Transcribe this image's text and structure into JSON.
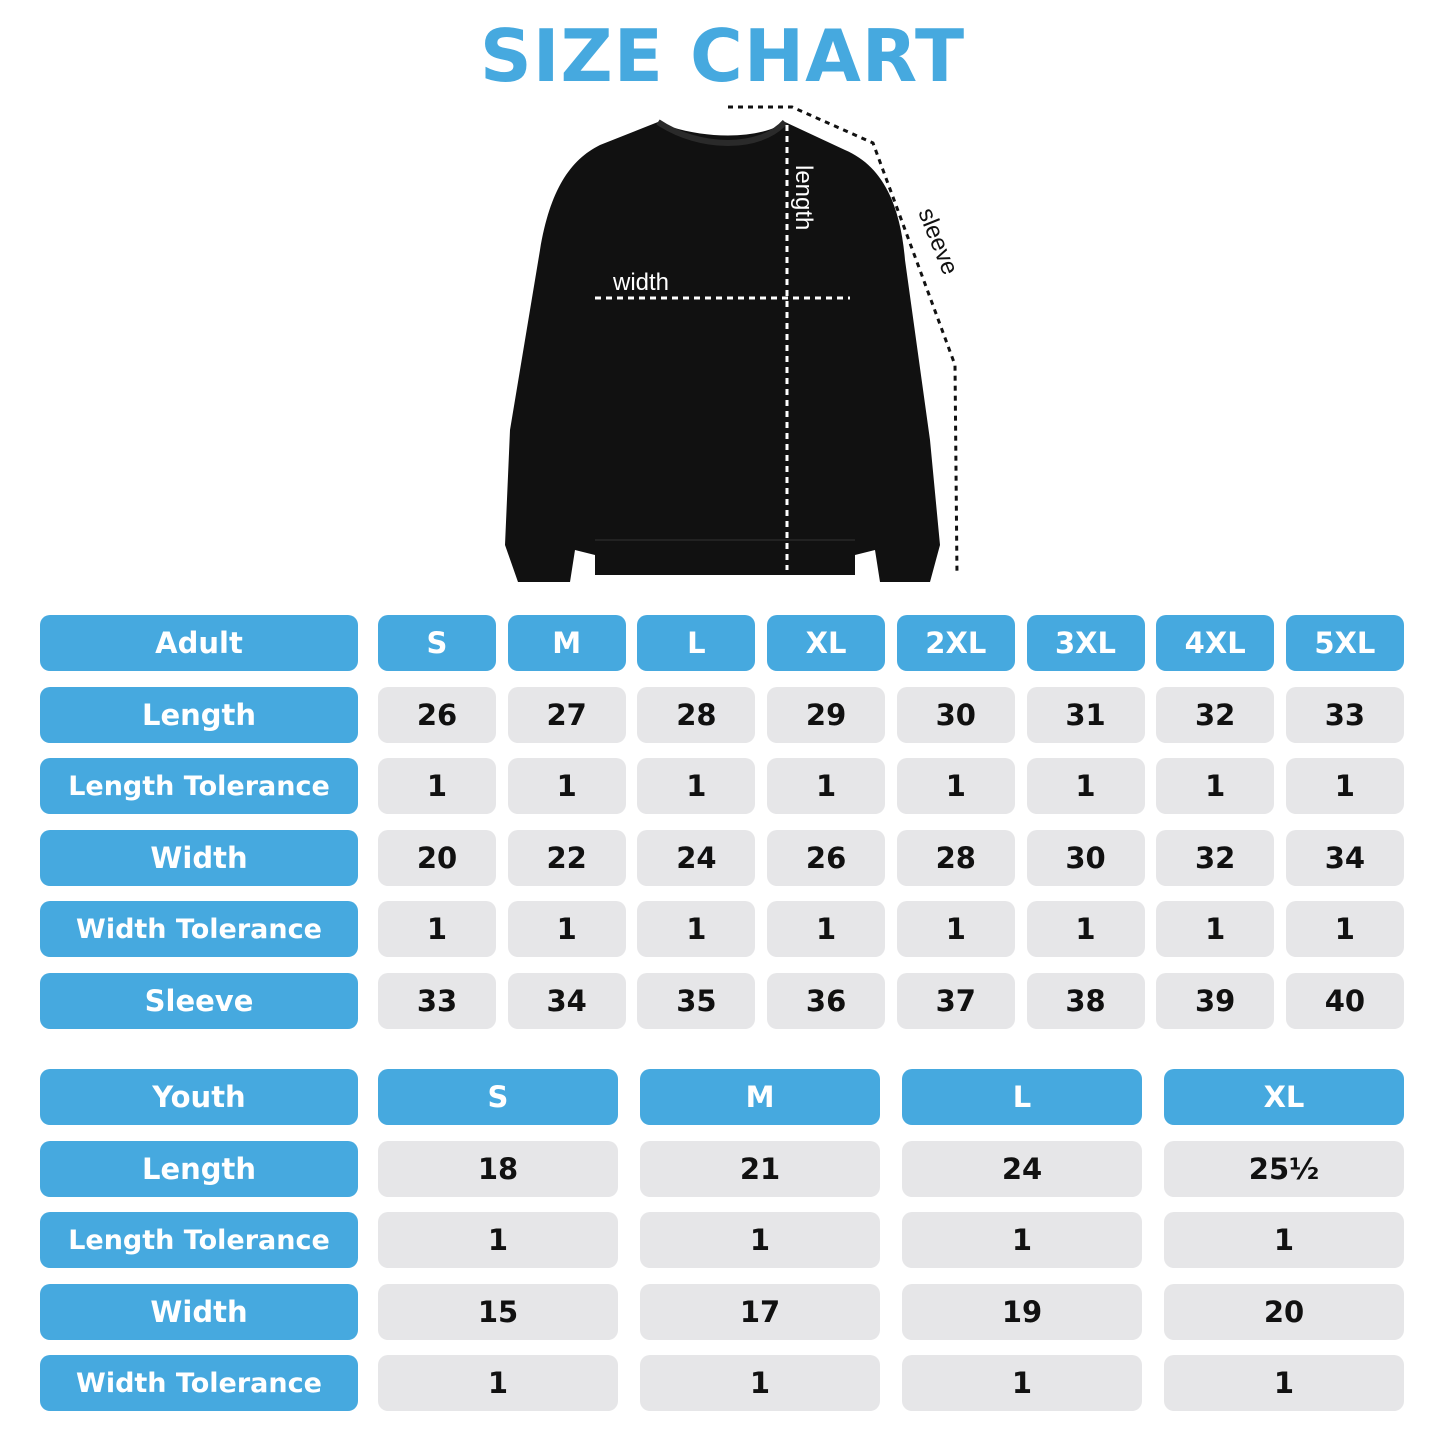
{
  "title": "SIZE CHART",
  "diagram_labels": {
    "length": "length",
    "width": "width",
    "sleeve": "sleeve"
  },
  "colors": {
    "accent": "#46a9df",
    "cell_bg": "#e6e6e8",
    "text": "#111111"
  },
  "adult": {
    "header": "Adult",
    "sizes": [
      "S",
      "M",
      "L",
      "XL",
      "2XL",
      "3XL",
      "4XL",
      "5XL"
    ],
    "rows": [
      {
        "label": "Length",
        "values": [
          "26",
          "27",
          "28",
          "29",
          "30",
          "31",
          "32",
          "33"
        ]
      },
      {
        "label": "Length Tolerance",
        "values": [
          "1",
          "1",
          "1",
          "1",
          "1",
          "1",
          "1",
          "1"
        ]
      },
      {
        "label": "Width",
        "values": [
          "20",
          "22",
          "24",
          "26",
          "28",
          "30",
          "32",
          "34"
        ]
      },
      {
        "label": "Width Tolerance",
        "values": [
          "1",
          "1",
          "1",
          "1",
          "1",
          "1",
          "1",
          "1"
        ]
      },
      {
        "label": "Sleeve",
        "values": [
          "33",
          "34",
          "35",
          "36",
          "37",
          "38",
          "39",
          "40"
        ]
      }
    ]
  },
  "youth": {
    "header": "Youth",
    "sizes": [
      "S",
      "M",
      "L",
      "XL"
    ],
    "rows": [
      {
        "label": "Length",
        "values": [
          "18",
          "21",
          "24",
          "25½"
        ]
      },
      {
        "label": "Length Tolerance",
        "values": [
          "1",
          "1",
          "1",
          "1"
        ]
      },
      {
        "label": "Width",
        "values": [
          "15",
          "17",
          "19",
          "20"
        ]
      },
      {
        "label": "Width Tolerance",
        "values": [
          "1",
          "1",
          "1",
          "1"
        ]
      }
    ]
  }
}
